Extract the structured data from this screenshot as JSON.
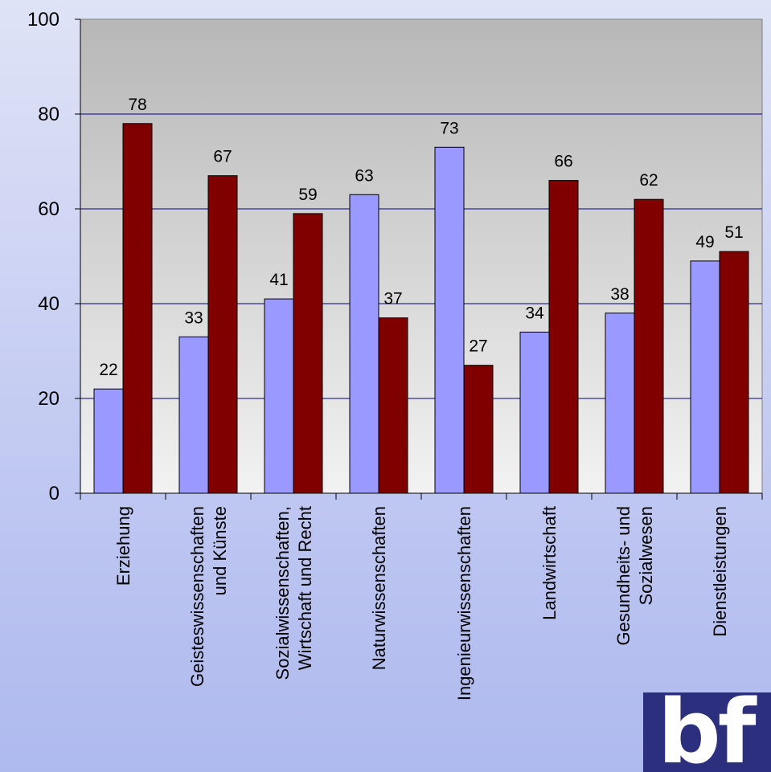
{
  "chart_data": {
    "type": "bar",
    "categories": [
      [
        "Erziehung"
      ],
      [
        "Geisteswissenschaften",
        "und Künste"
      ],
      [
        "Sozialwissenschaften,",
        "Wirtschaft und Recht"
      ],
      [
        "Naturwissenschaften"
      ],
      [
        "Ingenieurwissenschaften"
      ],
      [
        "Landwirtschaft"
      ],
      [
        "Gesundheits- und",
        "Sozialwesen"
      ],
      [
        "Dienstleistungen"
      ]
    ],
    "series": [
      {
        "color": "#9999ff",
        "values": [
          22,
          33,
          41,
          63,
          73,
          34,
          38,
          49
        ]
      },
      {
        "color": "#800000",
        "values": [
          78,
          67,
          59,
          37,
          27,
          66,
          62,
          51
        ]
      }
    ],
    "ylim": [
      0,
      100
    ],
    "yticks": [
      0,
      20,
      40,
      60,
      80,
      100
    ],
    "grid": true,
    "legend": "none",
    "title": "",
    "xlabel": "",
    "ylabel": ""
  },
  "logo": {
    "text": "bf"
  }
}
